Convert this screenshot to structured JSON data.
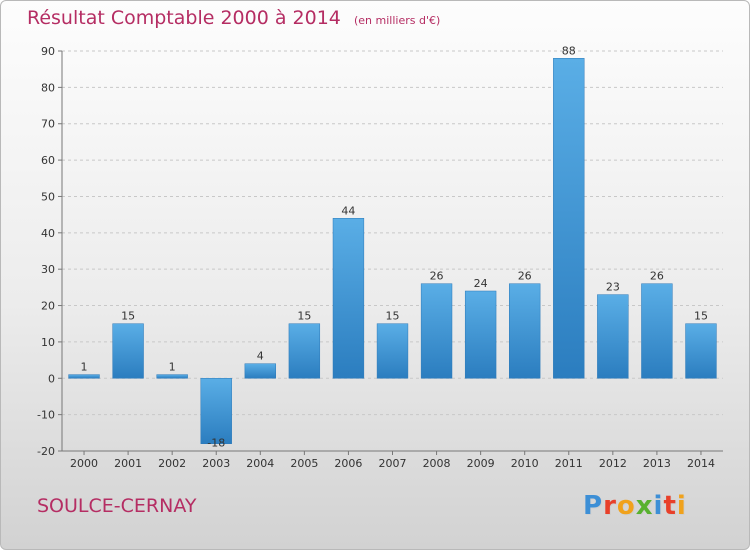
{
  "header": {
    "title": "Résultat Comptable 2000 à 2014",
    "unit": "(en milliers d'€)"
  },
  "footer": {
    "commune": "SOULCE-CERNAY",
    "logo_letters": [
      "P",
      "r",
      "o",
      "x",
      "i",
      "t",
      "i"
    ]
  },
  "colors": {
    "title": "#b52d63",
    "bar_light": "#5aaee6",
    "bar_dark": "#2b7dbf",
    "logo": [
      "#3d8fd6",
      "#e8402a",
      "#f0a21c",
      "#58b12f",
      "#3d8fd6",
      "#e8402a",
      "#f0a21c"
    ]
  },
  "chart_data": {
    "type": "bar",
    "title": "Résultat Comptable 2000 à 2014",
    "subtitle": "(en milliers d'€)",
    "xlabel": "",
    "ylabel": "",
    "categories": [
      "2000",
      "2001",
      "2002",
      "2003",
      "2004",
      "2005",
      "2006",
      "2007",
      "2008",
      "2009",
      "2010",
      "2011",
      "2012",
      "2013",
      "2014"
    ],
    "values": [
      1,
      15,
      1,
      -18,
      4,
      15,
      44,
      15,
      26,
      24,
      26,
      88,
      23,
      26,
      15
    ],
    "data_labels": [
      "1",
      "15",
      "1",
      "-18",
      "4",
      "15",
      "44",
      "15",
      "26",
      "24",
      "26",
      "88",
      "23",
      "26",
      "15"
    ],
    "ylim": [
      -20,
      90
    ],
    "yticks": [
      -20,
      -10,
      0,
      10,
      20,
      30,
      40,
      50,
      60,
      70,
      80,
      90
    ],
    "grid": "horizontal dashed",
    "legend": "none"
  }
}
